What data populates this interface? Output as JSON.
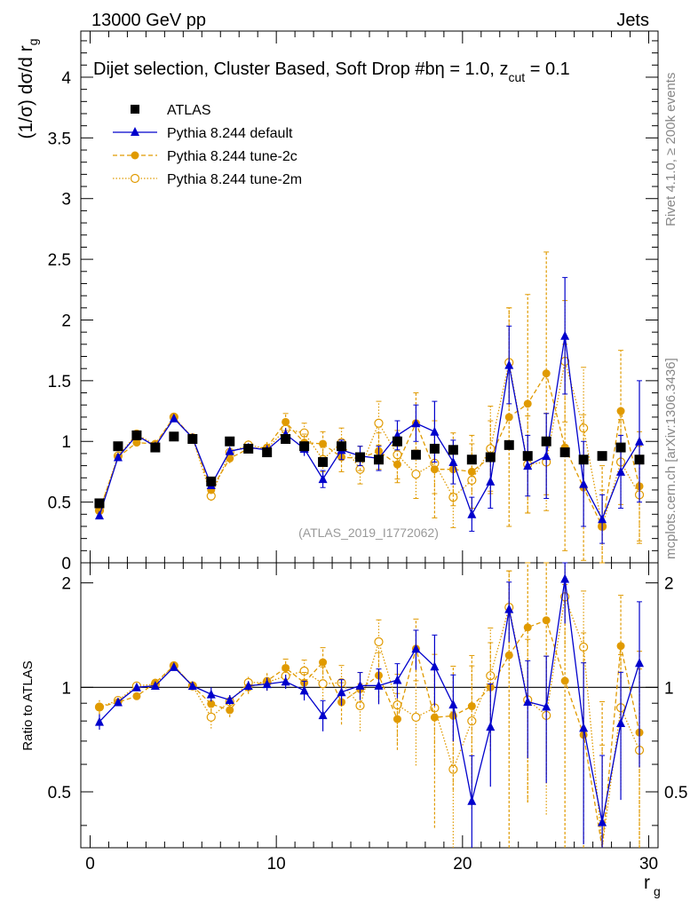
{
  "header": {
    "energy_label": "13000 GeV pp",
    "process_label": "Jets"
  },
  "side_labels": {
    "rivet": "Rivet 4.1.0, ≥ 200k events",
    "mcplots": "mcplots.cern.ch [arXiv:1306.3436]"
  },
  "plot_title_parts": {
    "main": "Dijet selection, Cluster Based, Soft Drop #b",
    "eq1": "η = 1.0, z",
    "sub": "cut",
    "eq2": " = 0.1"
  },
  "watermark": "(ATLAS_2019_I1772062)",
  "colors": {
    "data": "#000000",
    "default": "#0000cc",
    "tune": "#e09a00",
    "watermark": "#999999"
  },
  "chart_data": {
    "type": "line",
    "title": "Dijet selection, Cluster Based, Soft Drop #bη = 1.0, z_cut = 0.1",
    "xlabel": "r_g",
    "ylabel": "(1/σ) dσ/d r_g",
    "ratio_ylabel": "Ratio to ATLAS",
    "xlim": [
      -0.5,
      30.5
    ],
    "ylim": [
      0,
      4.38
    ],
    "ratio_ylim": [
      0.345,
      2.285
    ],
    "x_ticks": [
      "0",
      "10",
      "20",
      "30"
    ],
    "y_ticks": [
      "0",
      "0.5",
      "1",
      "1.5",
      "2",
      "2.5",
      "3",
      "3.5",
      "4"
    ],
    "ratio_ticks": [
      "0.5",
      "1",
      "2"
    ],
    "legend_position": "top-left",
    "x": [
      0.5,
      1.5,
      2.5,
      3.5,
      4.5,
      5.5,
      6.5,
      7.5,
      8.5,
      9.5,
      10.5,
      11.5,
      12.5,
      13.5,
      14.5,
      15.5,
      16.5,
      17.5,
      18.5,
      19.5,
      20.5,
      21.5,
      22.5,
      23.5,
      24.5,
      25.5,
      26.5,
      27.5,
      28.5,
      29.5
    ],
    "series": [
      {
        "name": "ATLAS",
        "style": "data",
        "values": [
          0.49,
          0.96,
          1.05,
          0.95,
          1.04,
          1.02,
          0.67,
          1.0,
          0.94,
          0.91,
          1.02,
          0.96,
          0.83,
          0.96,
          0.87,
          0.85,
          1.0,
          0.89,
          0.94,
          0.93,
          0.85,
          0.87,
          0.97,
          0.88,
          1.0,
          0.91,
          0.85,
          0.88,
          0.95,
          0.85
        ]
      },
      {
        "name": "Pythia 8.244 default",
        "style": "default",
        "values": [
          0.39,
          0.87,
          1.05,
          0.96,
          1.19,
          1.03,
          0.64,
          0.92,
          0.95,
          0.93,
          1.06,
          0.94,
          0.69,
          0.93,
          0.88,
          0.86,
          1.05,
          1.15,
          1.08,
          0.83,
          0.4,
          0.67,
          1.63,
          0.8,
          0.88,
          1.87,
          0.65,
          0.36,
          0.75,
          1.0
        ],
        "errors": [
          0.02,
          0.02,
          0.02,
          0.02,
          0.02,
          0.02,
          0.03,
          0.03,
          0.03,
          0.04,
          0.05,
          0.06,
          0.07,
          0.08,
          0.08,
          0.1,
          0.12,
          0.15,
          0.25,
          0.18,
          0.14,
          0.22,
          0.32,
          0.25,
          0.35,
          0.48,
          0.35,
          0.2,
          0.3,
          0.5
        ]
      },
      {
        "name": "Pythia 8.244 tune-2c",
        "style": "tune-filled",
        "values": [
          0.43,
          0.87,
          0.99,
          0.98,
          1.2,
          1.03,
          0.6,
          0.86,
          0.94,
          0.95,
          1.16,
          0.99,
          0.98,
          0.87,
          0.86,
          0.92,
          0.81,
          1.15,
          0.77,
          0.77,
          0.75,
          0.87,
          1.2,
          1.31,
          1.56,
          0.95,
          0.62,
          0.3,
          1.25,
          0.63
        ],
        "errors": [
          0.02,
          0.02,
          0.02,
          0.02,
          0.02,
          0.03,
          0.03,
          0.04,
          0.04,
          0.05,
          0.07,
          0.07,
          0.1,
          0.12,
          0.1,
          0.15,
          0.15,
          0.25,
          0.4,
          0.3,
          0.3,
          0.3,
          0.9,
          0.9,
          1.0,
          0.85,
          0.6,
          0.5,
          0.5,
          0.45
        ]
      },
      {
        "name": "Pythia 8.244 tune-2m",
        "style": "tune-open",
        "values": [
          0.43,
          0.88,
          1.06,
          0.97,
          1.2,
          1.03,
          0.55,
          0.91,
          0.97,
          0.94,
          1.1,
          1.07,
          0.85,
          0.99,
          0.77,
          1.15,
          0.89,
          0.73,
          0.82,
          0.54,
          0.68,
          0.94,
          1.65,
          0.81,
          0.83,
          1.66,
          1.11,
          0.3,
          0.83,
          0.56
        ],
        "errors": [
          0.02,
          0.02,
          0.02,
          0.02,
          0.03,
          0.03,
          0.04,
          0.04,
          0.05,
          0.05,
          0.07,
          0.08,
          0.1,
          0.12,
          0.12,
          0.18,
          0.2,
          0.2,
          0.25,
          0.25,
          0.3,
          0.35,
          0.45,
          0.4,
          0.4,
          0.5,
          0.5,
          0.3,
          0.35,
          0.4
        ]
      }
    ]
  }
}
